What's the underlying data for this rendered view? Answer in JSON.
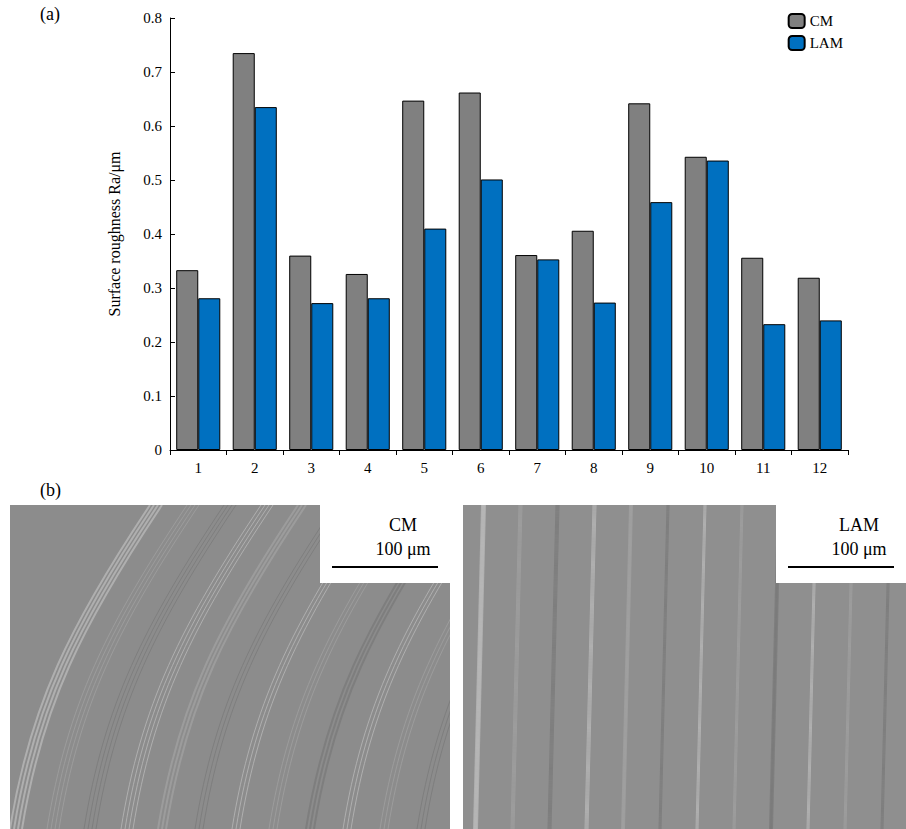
{
  "chart_data": {
    "type": "bar",
    "y_label": "Surface roughness Ra/μm",
    "categories": [
      "1",
      "2",
      "3",
      "4",
      "5",
      "6",
      "7",
      "8",
      "9",
      "10",
      "11",
      "12"
    ],
    "series": [
      {
        "name": "CM",
        "color": "#808080",
        "values": [
          0.333,
          0.735,
          0.36,
          0.326,
          0.647,
          0.662,
          0.361,
          0.406,
          0.642,
          0.543,
          0.356,
          0.319
        ]
      },
      {
        "name": "LAM",
        "color": "#0070c0",
        "values": [
          0.281,
          0.635,
          0.272,
          0.281,
          0.41,
          0.501,
          0.353,
          0.273,
          0.459,
          0.536,
          0.233,
          0.24
        ]
      }
    ],
    "ylim": [
      0,
      0.8
    ],
    "yticks": [
      0,
      0.1,
      0.2,
      0.3,
      0.4,
      0.5,
      0.6,
      0.7,
      0.8
    ],
    "grid": false,
    "legend": "upper right"
  },
  "panel_label": "(a)",
  "micrographs": {
    "panel_label": "(b)",
    "images": [
      {
        "label": "CM",
        "scale_bar": "100 μm"
      },
      {
        "label": "LAM",
        "scale_bar": "100 μm"
      }
    ]
  }
}
